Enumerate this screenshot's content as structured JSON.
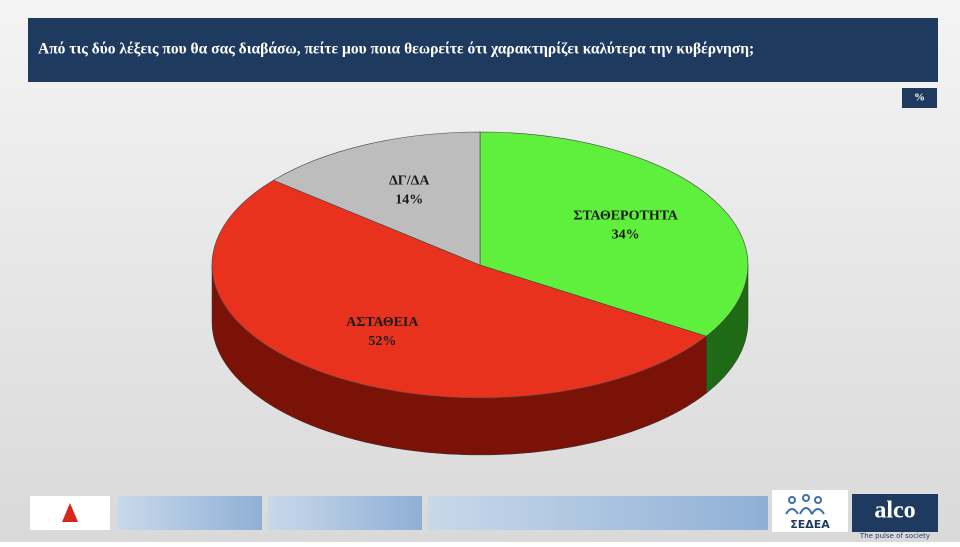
{
  "chart_data": {
    "type": "pie3d",
    "title": "Από τις δύο λέξεις που θα σας διαβάσω,  πείτε μου ποια θεωρείτε ότι χαρακτηρίζει καλύτερα την κυβέρνηση;",
    "unit_label": "%",
    "categories": [
      "ΣΤΑΘΕΡΟΤΗΤΑ",
      "ΑΣΤΑΘΕΙΑ",
      "ΔΓ/ΔΑ"
    ],
    "values": [
      34,
      52,
      14
    ],
    "value_labels": [
      "34%",
      "52%",
      "14%"
    ],
    "colors": [
      "#5ef03c",
      "#e8321e",
      "#bdbdbd"
    ],
    "side_colors": [
      "#1f6a14",
      "#7a1208",
      "#6e6e6e"
    ]
  },
  "footer": {
    "logos": [
      "ΣΕΔΕΑ",
      "alco",
      "The pulse of society"
    ]
  }
}
